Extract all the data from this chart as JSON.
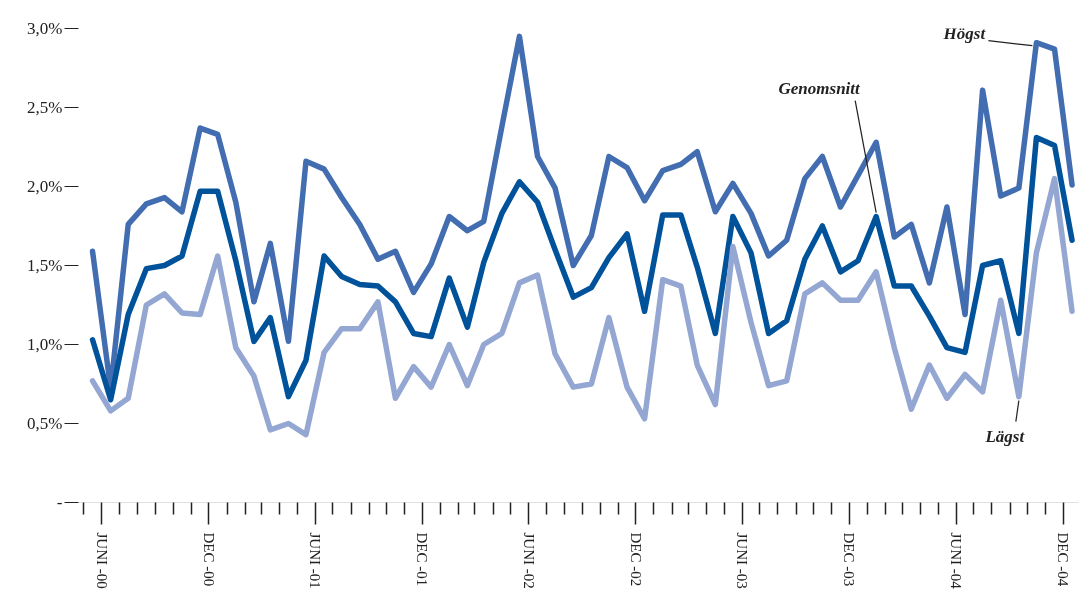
{
  "chart_data": {
    "type": "line",
    "x": [
      "2000-05-16",
      "2000-06-16",
      "2000-07-16",
      "2000-08-16",
      "2000-09-16",
      "2000-10-16",
      "2000-11-16",
      "2000-12-16",
      "2001-01-16",
      "2001-02-16",
      "2001-03-16",
      "2001-04-16",
      "2001-05-16",
      "2001-06-16",
      "2001-07-16",
      "2001-08-16",
      "2001-09-16",
      "2001-10-16",
      "2001-11-16",
      "2001-12-16",
      "2002-01-16",
      "2002-02-16",
      "2002-03-16",
      "2002-04-16",
      "2002-05-16",
      "2002-06-16",
      "2002-07-16",
      "2002-08-16",
      "2002-09-16",
      "2002-10-16",
      "2002-11-16",
      "2002-12-16",
      "2003-01-16",
      "2003-02-16",
      "2003-03-16",
      "2003-04-16",
      "2003-05-16",
      "2003-06-16",
      "2003-07-16",
      "2003-08-16",
      "2003-09-16",
      "2003-10-16",
      "2003-11-16",
      "2003-12-16",
      "2004-01-16",
      "2004-02-16",
      "2004-03-16",
      "2004-04-16",
      "2004-05-16",
      "2004-06-16",
      "2004-07-16",
      "2004-08-16",
      "2004-09-16",
      "2004-10-16",
      "2004-11-16",
      "2004-12-16"
    ],
    "series": [
      {
        "name": "Högst",
        "color": "#426db0",
        "values": [
          1.59,
          0.72,
          1.76,
          1.89,
          1.93,
          1.84,
          2.37,
          2.33,
          1.9,
          1.27,
          1.64,
          1.02,
          2.16,
          2.11,
          1.93,
          1.76,
          1.54,
          1.59,
          1.33,
          1.51,
          1.81,
          1.72,
          1.78,
          2.38,
          2.95,
          2.19,
          1.99,
          1.5,
          1.69,
          2.19,
          2.12,
          1.91,
          2.1,
          2.14,
          2.22,
          1.84,
          2.02,
          1.83,
          1.56,
          1.66,
          2.05,
          2.19,
          1.87,
          2.07,
          2.28,
          1.68,
          1.76,
          1.39,
          1.87,
          1.19,
          2.61,
          1.94,
          1.99,
          2.91,
          2.87,
          2.01
        ]
      },
      {
        "name": "Genomsnitt",
        "color": "#00529b",
        "values": [
          1.03,
          0.65,
          1.19,
          1.48,
          1.5,
          1.56,
          1.97,
          1.97,
          1.53,
          1.02,
          1.17,
          0.67,
          0.9,
          1.56,
          1.43,
          1.38,
          1.37,
          1.27,
          1.07,
          1.05,
          1.42,
          1.11,
          1.52,
          1.83,
          2.03,
          1.9,
          1.6,
          1.3,
          1.36,
          1.55,
          1.7,
          1.21,
          1.82,
          1.82,
          1.49,
          1.07,
          1.81,
          1.58,
          1.07,
          1.15,
          1.54,
          1.75,
          1.46,
          1.53,
          1.81,
          1.37,
          1.37,
          1.18,
          0.98,
          0.95,
          1.5,
          1.53,
          1.07,
          2.31,
          2.26,
          1.66
        ]
      },
      {
        "name": "Lägst",
        "color": "#94a6d2",
        "values": [
          0.77,
          0.58,
          0.66,
          1.25,
          1.32,
          1.2,
          1.19,
          1.56,
          0.98,
          0.8,
          0.46,
          0.5,
          0.43,
          0.95,
          1.1,
          1.1,
          1.27,
          0.66,
          0.86,
          0.73,
          1.0,
          0.74,
          1.0,
          1.07,
          1.39,
          1.44,
          0.94,
          0.73,
          0.75,
          1.17,
          0.73,
          0.53,
          1.41,
          1.37,
          0.87,
          0.62,
          1.62,
          1.14,
          0.74,
          0.77,
          1.32,
          1.39,
          1.28,
          1.28,
          1.46,
          0.98,
          0.59,
          0.87,
          0.66,
          0.81,
          0.7,
          1.28,
          0.67,
          1.58,
          2.05,
          1.21
        ]
      }
    ],
    "xticks": [
      {
        "value": "2000-05-01",
        "label": null
      },
      {
        "value": "2000-06-01",
        "label": "JUNI -00"
      },
      {
        "value": "2000-07-01",
        "label": null
      },
      {
        "value": "2000-08-01",
        "label": null
      },
      {
        "value": "2000-09-01",
        "label": null
      },
      {
        "value": "2000-10-01",
        "label": null
      },
      {
        "value": "2000-11-01",
        "label": null
      },
      {
        "value": "2000-12-01",
        "label": "DEC -00"
      },
      {
        "value": "2001-01-01",
        "label": null
      },
      {
        "value": "2001-02-01",
        "label": null
      },
      {
        "value": "2001-03-01",
        "label": null
      },
      {
        "value": "2001-04-01",
        "label": null
      },
      {
        "value": "2001-05-01",
        "label": null
      },
      {
        "value": "2001-06-01",
        "label": "JUNI -01"
      },
      {
        "value": "2001-07-01",
        "label": null
      },
      {
        "value": "2001-08-01",
        "label": null
      },
      {
        "value": "2001-09-01",
        "label": null
      },
      {
        "value": "2001-10-01",
        "label": null
      },
      {
        "value": "2001-11-01",
        "label": null
      },
      {
        "value": "2001-12-01",
        "label": "DEC -01"
      },
      {
        "value": "2002-01-01",
        "label": null
      },
      {
        "value": "2002-02-01",
        "label": null
      },
      {
        "value": "2002-03-01",
        "label": null
      },
      {
        "value": "2002-04-01",
        "label": null
      },
      {
        "value": "2002-05-01",
        "label": null
      },
      {
        "value": "2002-06-01",
        "label": "JUNI -02"
      },
      {
        "value": "2002-07-01",
        "label": null
      },
      {
        "value": "2002-08-01",
        "label": null
      },
      {
        "value": "2002-09-01",
        "label": null
      },
      {
        "value": "2002-10-01",
        "label": null
      },
      {
        "value": "2002-11-01",
        "label": null
      },
      {
        "value": "2002-12-01",
        "label": "DEC -02"
      },
      {
        "value": "2003-01-01",
        "label": null
      },
      {
        "value": "2003-02-01",
        "label": null
      },
      {
        "value": "2003-03-01",
        "label": null
      },
      {
        "value": "2003-04-01",
        "label": null
      },
      {
        "value": "2003-05-01",
        "label": null
      },
      {
        "value": "2003-06-01",
        "label": "JUNI -03"
      },
      {
        "value": "2003-07-01",
        "label": null
      },
      {
        "value": "2003-08-01",
        "label": null
      },
      {
        "value": "2003-09-01",
        "label": null
      },
      {
        "value": "2003-10-01",
        "label": null
      },
      {
        "value": "2003-11-01",
        "label": null
      },
      {
        "value": "2003-12-01",
        "label": "DEC -03"
      },
      {
        "value": "2004-01-01",
        "label": null
      },
      {
        "value": "2004-02-01",
        "label": null
      },
      {
        "value": "2004-03-01",
        "label": null
      },
      {
        "value": "2004-04-01",
        "label": null
      },
      {
        "value": "2004-05-01",
        "label": null
      },
      {
        "value": "2004-06-01",
        "label": "JUNI -04"
      },
      {
        "value": "2004-07-01",
        "label": null
      },
      {
        "value": "2004-08-01",
        "label": null
      },
      {
        "value": "2004-09-01",
        "label": null
      },
      {
        "value": "2004-10-01",
        "label": null
      },
      {
        "value": "2004-11-01",
        "label": null
      },
      {
        "value": "2004-12-01",
        "label": "DEC -04"
      }
    ],
    "xlim": [
      "2000-04-22",
      "2004-12-27"
    ],
    "ylim": [
      0,
      3.0
    ],
    "yticks": [
      {
        "value": 0,
        "label": "-"
      },
      {
        "value": 0.5,
        "label": "0,5%"
      },
      {
        "value": 1.0,
        "label": "1,0%"
      },
      {
        "value": 1.5,
        "label": "1,5%"
      },
      {
        "value": 2.0,
        "label": "2,0%"
      },
      {
        "value": 2.5,
        "label": "2,5%"
      },
      {
        "value": 3.0,
        "label": "3,0%"
      }
    ],
    "grid": false,
    "legend": false,
    "marker": "none",
    "line_style": "solid"
  }
}
